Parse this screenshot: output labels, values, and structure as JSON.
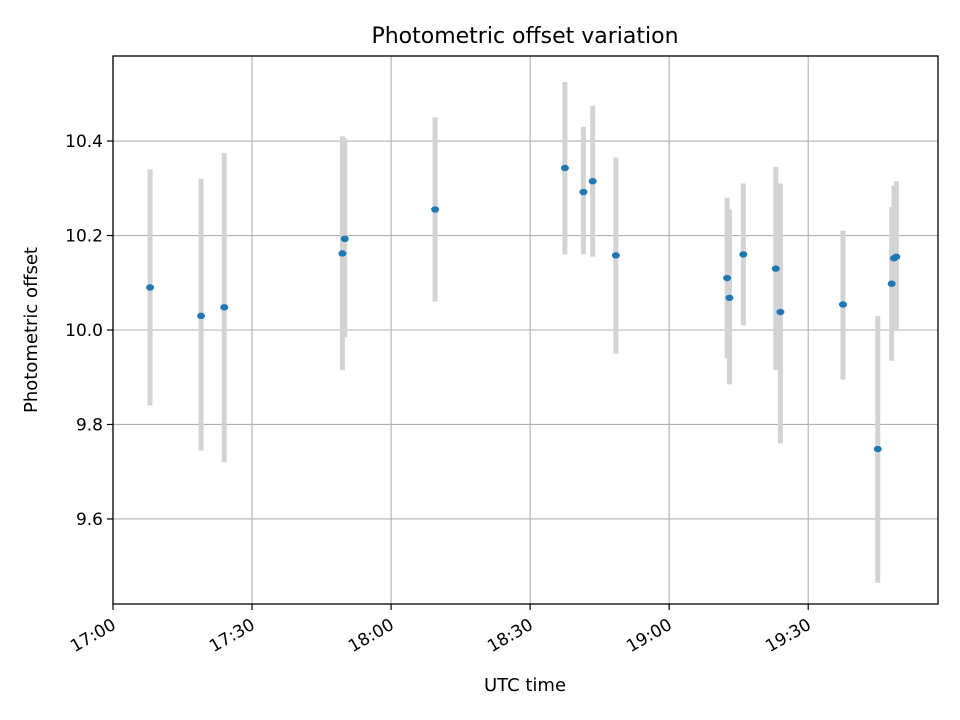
{
  "chart_data": {
    "type": "scatter",
    "title": "Photometric offset variation",
    "xlabel": "UTC time",
    "ylabel": "Photometric offset",
    "x_ticks": [
      "17:00",
      "17:30",
      "18:00",
      "18:30",
      "19:00",
      "19:30"
    ],
    "y_ticks": [
      "9.6",
      "9.8",
      "10.0",
      "10.2",
      "10.4"
    ],
    "xlim": [
      "17:00",
      "19:58"
    ],
    "ylim": [
      9.42,
      10.58
    ],
    "grid": true,
    "colors": {
      "points": "#1f77b4",
      "errorbars": "#d3d3d3",
      "grid": "#b0b0b0"
    },
    "points": [
      {
        "x": "17:08",
        "y": 10.09,
        "ylow": 9.84,
        "yhigh": 10.34
      },
      {
        "x": "17:19",
        "y": 10.03,
        "ylow": 9.745,
        "yhigh": 10.32
      },
      {
        "x": "17:24",
        "y": 10.048,
        "ylow": 9.72,
        "yhigh": 10.375
      },
      {
        "x": "17:49.5",
        "y": 10.162,
        "ylow": 9.915,
        "yhigh": 10.41
      },
      {
        "x": "17:50",
        "y": 10.193,
        "ylow": 9.985,
        "yhigh": 10.405
      },
      {
        "x": "18:09.5",
        "y": 10.255,
        "ylow": 10.06,
        "yhigh": 10.45
      },
      {
        "x": "18:37.5",
        "y": 10.343,
        "ylow": 10.16,
        "yhigh": 10.525
      },
      {
        "x": "18:41.5",
        "y": 10.292,
        "ylow": 10.16,
        "yhigh": 10.43
      },
      {
        "x": "18:43.5",
        "y": 10.315,
        "ylow": 10.155,
        "yhigh": 10.475
      },
      {
        "x": "18:48.5",
        "y": 10.158,
        "ylow": 9.95,
        "yhigh": 10.365
      },
      {
        "x": "19:12.5",
        "y": 10.11,
        "ylow": 9.94,
        "yhigh": 10.28
      },
      {
        "x": "19:13",
        "y": 10.068,
        "ylow": 9.885,
        "yhigh": 10.255
      },
      {
        "x": "19:16",
        "y": 10.16,
        "ylow": 10.01,
        "yhigh": 10.31
      },
      {
        "x": "19:23",
        "y": 10.13,
        "ylow": 9.915,
        "yhigh": 10.345
      },
      {
        "x": "19:24",
        "y": 10.038,
        "ylow": 9.76,
        "yhigh": 10.31
      },
      {
        "x": "19:37.5",
        "y": 10.054,
        "ylow": 9.895,
        "yhigh": 10.21
      },
      {
        "x": "19:45",
        "y": 9.748,
        "ylow": 9.465,
        "yhigh": 10.03
      },
      {
        "x": "19:48",
        "y": 10.098,
        "ylow": 9.935,
        "yhigh": 10.26
      },
      {
        "x": "19:48.5",
        "y": 10.152,
        "ylow": 10.0,
        "yhigh": 10.305
      },
      {
        "x": "19:49",
        "y": 10.155,
        "ylow": 10.0,
        "yhigh": 10.315
      }
    ]
  }
}
